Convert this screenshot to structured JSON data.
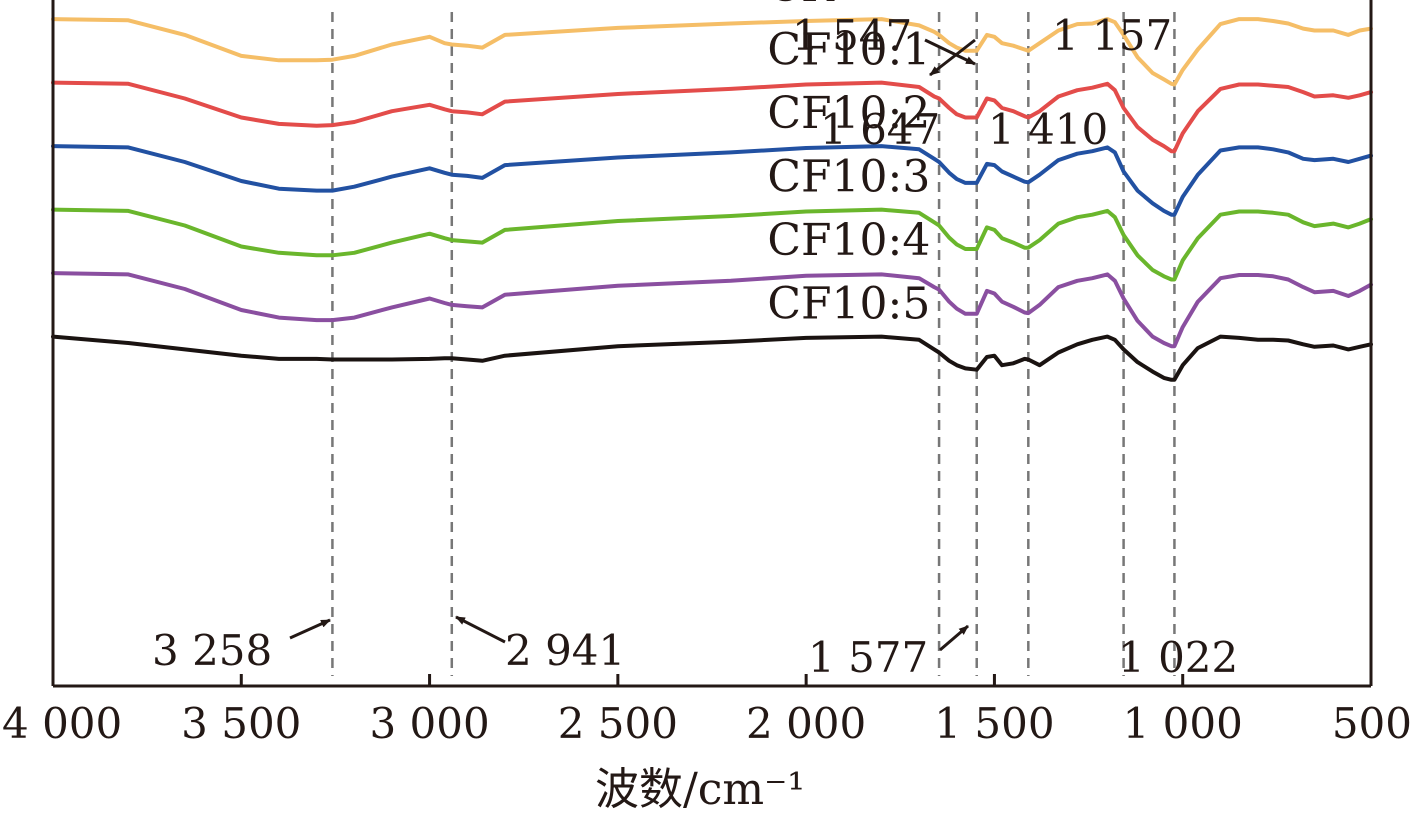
{
  "chart_data": {
    "type": "line",
    "title": "",
    "xlabel": "波数/cm⁻¹",
    "ylabel": "",
    "xlim": [
      4000,
      500
    ],
    "x_reversed": true,
    "x_ticks": [
      4000,
      3500,
      3000,
      2500,
      2000,
      1500,
      1000,
      500
    ],
    "x_tick_labels": [
      "4 000",
      "3 500",
      "3 000",
      "2 500",
      "2 000",
      "1 500",
      "1 000",
      "500"
    ],
    "reference_lines": [
      3258,
      2941,
      1647,
      1547,
      1410,
      1157,
      1022
    ],
    "ylim": [
      -5.5,
      5.3
    ],
    "y_units": "relative transmittance (offset)",
    "x": [
      4000,
      3800,
      3650,
      3500,
      3400,
      3300,
      3258,
      3200,
      3100,
      3000,
      2960,
      2941,
      2900,
      2860,
      2800,
      2500,
      2200,
      2000,
      1800,
      1700,
      1660,
      1647,
      1620,
      1600,
      1577,
      1547,
      1520,
      1500,
      1480,
      1450,
      1420,
      1410,
      1380,
      1330,
      1280,
      1240,
      1200,
      1180,
      1157,
      1120,
      1080,
      1050,
      1030,
      1022,
      1000,
      960,
      900,
      850,
      800,
      760,
      720,
      680,
      650,
      600,
      560,
      530,
      500
    ],
    "series": [
      {
        "name": "CK",
        "color": "#F5BE67",
        "values": [
          5.0,
          4.98,
          4.75,
          4.42,
          4.35,
          4.35,
          4.36,
          4.42,
          4.6,
          4.72,
          4.62,
          4.6,
          4.58,
          4.55,
          4.75,
          4.86,
          4.93,
          4.97,
          5.0,
          4.9,
          4.8,
          4.75,
          4.62,
          4.55,
          4.5,
          4.5,
          4.75,
          4.72,
          4.62,
          4.58,
          4.52,
          4.5,
          4.62,
          4.82,
          4.92,
          4.93,
          5.0,
          4.95,
          4.75,
          4.4,
          4.15,
          4.05,
          3.98,
          3.97,
          4.2,
          4.52,
          4.92,
          5.0,
          5.0,
          4.97,
          4.93,
          4.85,
          4.82,
          4.82,
          4.75,
          4.82,
          4.85
        ]
      },
      {
        "name": "CF10:1",
        "color": "#E34C4A",
        "values": [
          4.0,
          3.98,
          3.75,
          3.45,
          3.35,
          3.32,
          3.33,
          3.38,
          3.55,
          3.65,
          3.58,
          3.55,
          3.53,
          3.5,
          3.7,
          3.82,
          3.9,
          3.97,
          4.0,
          3.93,
          3.78,
          3.75,
          3.6,
          3.5,
          3.45,
          3.45,
          3.75,
          3.72,
          3.6,
          3.55,
          3.47,
          3.45,
          3.55,
          3.78,
          3.88,
          3.92,
          3.98,
          3.88,
          3.6,
          3.3,
          3.1,
          3.0,
          2.92,
          2.92,
          3.2,
          3.55,
          3.9,
          3.97,
          3.97,
          3.95,
          3.93,
          3.85,
          3.78,
          3.8,
          3.76,
          3.8,
          3.85
        ]
      },
      {
        "name": "CF10:2",
        "color": "#2251A2",
        "values": [
          3.0,
          2.98,
          2.75,
          2.45,
          2.33,
          2.3,
          2.3,
          2.36,
          2.52,
          2.65,
          2.58,
          2.55,
          2.53,
          2.5,
          2.7,
          2.82,
          2.9,
          2.97,
          3.0,
          2.95,
          2.8,
          2.75,
          2.58,
          2.48,
          2.42,
          2.42,
          2.72,
          2.7,
          2.6,
          2.52,
          2.44,
          2.43,
          2.55,
          2.78,
          2.88,
          2.92,
          2.98,
          2.9,
          2.6,
          2.3,
          2.1,
          1.98,
          1.92,
          1.92,
          2.2,
          2.55,
          2.93,
          2.98,
          2.98,
          2.95,
          2.9,
          2.8,
          2.78,
          2.8,
          2.75,
          2.8,
          2.85
        ]
      },
      {
        "name": "CF10:3",
        "color": "#6AB62C",
        "values": [
          2.0,
          1.98,
          1.75,
          1.42,
          1.32,
          1.28,
          1.28,
          1.32,
          1.48,
          1.62,
          1.55,
          1.52,
          1.5,
          1.48,
          1.68,
          1.82,
          1.9,
          1.97,
          2.0,
          1.95,
          1.8,
          1.75,
          1.56,
          1.45,
          1.38,
          1.38,
          1.72,
          1.68,
          1.55,
          1.48,
          1.4,
          1.4,
          1.52,
          1.78,
          1.88,
          1.92,
          1.98,
          1.88,
          1.6,
          1.28,
          1.05,
          0.95,
          0.9,
          0.9,
          1.2,
          1.55,
          1.92,
          1.97,
          1.97,
          1.95,
          1.92,
          1.8,
          1.74,
          1.78,
          1.72,
          1.78,
          1.85
        ]
      },
      {
        "name": "CF10:4",
        "color": "#8A4FA0",
        "values": [
          1.0,
          0.98,
          0.75,
          0.42,
          0.3,
          0.26,
          0.26,
          0.3,
          0.46,
          0.6,
          0.53,
          0.5,
          0.48,
          0.46,
          0.66,
          0.8,
          0.88,
          0.96,
          0.98,
          0.92,
          0.78,
          0.74,
          0.55,
          0.44,
          0.36,
          0.36,
          0.72,
          0.68,
          0.55,
          0.47,
          0.38,
          0.37,
          0.5,
          0.78,
          0.88,
          0.92,
          0.98,
          0.88,
          0.6,
          0.25,
          0.0,
          -0.1,
          -0.15,
          -0.15,
          0.15,
          0.55,
          0.92,
          0.97,
          0.97,
          0.95,
          0.9,
          0.78,
          0.7,
          0.72,
          0.64,
          0.72,
          0.82
        ]
      },
      {
        "name": "CF10:5",
        "color": "#1A1311",
        "values": [
          0.0,
          -0.1,
          -0.2,
          -0.3,
          -0.35,
          -0.35,
          -0.36,
          -0.36,
          -0.36,
          -0.35,
          -0.34,
          -0.34,
          -0.36,
          -0.38,
          -0.3,
          -0.15,
          -0.08,
          -0.02,
          0.0,
          -0.05,
          -0.2,
          -0.25,
          -0.38,
          -0.45,
          -0.5,
          -0.52,
          -0.32,
          -0.3,
          -0.45,
          -0.42,
          -0.35,
          -0.36,
          -0.45,
          -0.25,
          -0.12,
          -0.05,
          0.0,
          -0.05,
          -0.2,
          -0.4,
          -0.55,
          -0.65,
          -0.68,
          -0.68,
          -0.45,
          -0.18,
          0.0,
          -0.02,
          -0.05,
          -0.05,
          -0.06,
          -0.12,
          -0.16,
          -0.14,
          -0.2,
          -0.16,
          -0.12
        ]
      }
    ],
    "annotations": [
      {
        "label": "1 547",
        "x": 1547,
        "series": "CK"
      },
      {
        "label": "1 157",
        "x": 1157,
        "series": "CK"
      },
      {
        "label": "1 647",
        "x": 1647,
        "series": "CK"
      },
      {
        "label": "1 410",
        "x": 1410,
        "series": "CK"
      },
      {
        "label": "3 258",
        "x": 3258,
        "series": "CF10:5"
      },
      {
        "label": "2 941",
        "x": 2941,
        "series": "CF10:5"
      },
      {
        "label": "1 577",
        "x": 1577,
        "series": "CF10:5"
      },
      {
        "label": "1 022",
        "x": 1022,
        "series": "CF10:5"
      }
    ],
    "grid": false,
    "legend": "inline labels above each curve"
  }
}
